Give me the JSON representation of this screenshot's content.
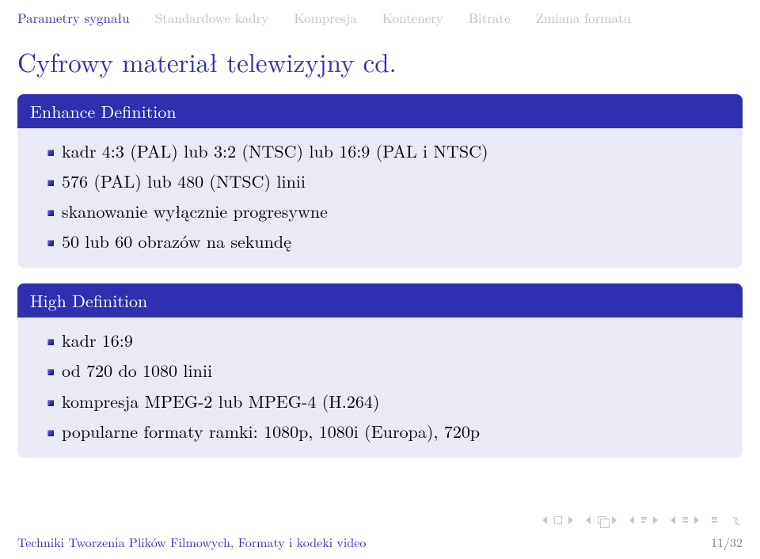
{
  "nav": {
    "items": [
      {
        "label": "Parametry sygnału",
        "active": true
      },
      {
        "label": "Standardowe kadry",
        "active": false
      },
      {
        "label": "Kompresja",
        "active": false
      },
      {
        "label": "Kontenery",
        "active": false
      },
      {
        "label": "Bitrate",
        "active": false
      },
      {
        "label": "Zmiana formatu",
        "active": false
      }
    ]
  },
  "title": "Cyfrowy materiał telewizyjny cd.",
  "block1": {
    "header": "Enhance Definition",
    "items": [
      "kadr 4:3 (PAL) lub 3:2 (NTSC) lub 16:9 (PAL i NTSC)",
      "576 (PAL) lub 480 (NTSC) linii",
      "skanowanie wyłącznie progresywne",
      "50 lub 60 obrazów na sekundę"
    ]
  },
  "block2": {
    "header": "High Definition",
    "items": [
      "kadr 16:9",
      "od 720 do 1080 linii",
      "kompresja MPEG-2 lub MPEG-4 (H.264)",
      "popularne formaty ramki: 1080p, 1080i (Europa), 720p"
    ]
  },
  "footer": {
    "left": "Techniki Tworzenia Plików Filmowych, Formaty i kodeki video",
    "right": "11/32"
  },
  "colors": {
    "accent": "#2f2fb0",
    "nav_inactive": "#c0c0c0",
    "block_body_bg": "#eaeaf7",
    "footer_right": "#7a7a7a"
  }
}
